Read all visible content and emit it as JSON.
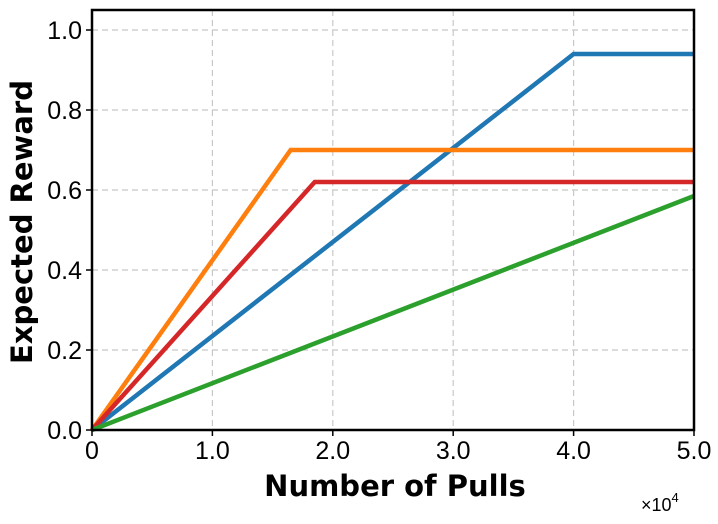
{
  "chart_data": {
    "type": "line",
    "title": "",
    "xlabel": "Number of Pulls",
    "ylabel": "Expected Reward",
    "x_scale_label": "×10",
    "x_scale_exponent": "4",
    "xlim": [
      0,
      5.0
    ],
    "ylim": [
      0,
      1.05
    ],
    "x_ticks": [
      "0",
      "1.0",
      "2.0",
      "3.0",
      "4.0",
      "5.0"
    ],
    "x_tick_values": [
      0,
      1.0,
      2.0,
      3.0,
      4.0,
      5.0
    ],
    "y_ticks": [
      "0.0",
      "0.2",
      "0.4",
      "0.6",
      "0.8",
      "1.0"
    ],
    "y_tick_values": [
      0.0,
      0.2,
      0.4,
      0.6,
      0.8,
      1.0
    ],
    "grid": true,
    "legend": "none",
    "series": [
      {
        "color": "#1f77b4",
        "x": [
          0,
          4.0,
          5.0
        ],
        "y": [
          0,
          0.94,
          0.94
        ]
      },
      {
        "color": "#ff7f0e",
        "x": [
          0,
          1.65,
          5.0
        ],
        "y": [
          0,
          0.7,
          0.7
        ]
      },
      {
        "color": "#d62728",
        "x": [
          0,
          1.85,
          5.0
        ],
        "y": [
          0,
          0.62,
          0.62
        ]
      },
      {
        "color": "#2ca02c",
        "x": [
          0,
          5.0
        ],
        "y": [
          0,
          0.585
        ]
      }
    ]
  }
}
